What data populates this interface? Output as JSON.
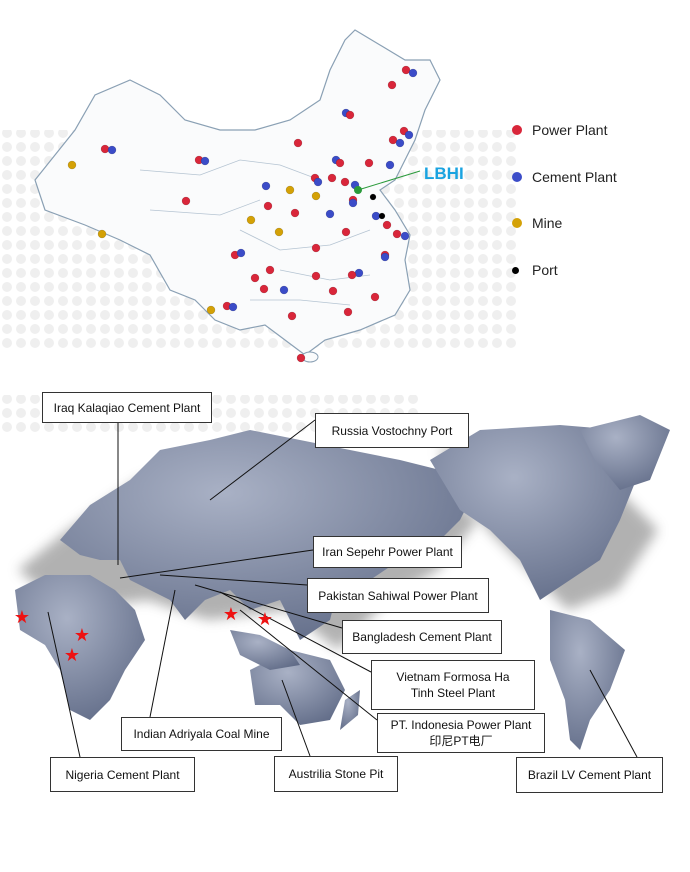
{
  "legend": {
    "items": [
      {
        "label": "Power Plant",
        "color": "#d9263a"
      },
      {
        "label": "Cement Plant",
        "color": "#3b4cc8"
      },
      {
        "label": "Mine",
        "color": "#d4a106"
      },
      {
        "label": "Port",
        "color": "#000000"
      }
    ]
  },
  "china_map": {
    "highlight_label": "LBHI",
    "highlight_color": "#1aa3e0",
    "line_color": "#2a9a3a"
  },
  "world_map": {
    "marker_icon": "red-star",
    "marker_color": "#ee1111",
    "projects": [
      {
        "label": "Iraq Kalaqiao Cement Plant"
      },
      {
        "label": "Russia Vostochny Port"
      },
      {
        "label": "Iran Sepehr Power Plant"
      },
      {
        "label": "Pakistan Sahiwal Power Plant"
      },
      {
        "label": "Bangladesh Cement Plant"
      },
      {
        "label": "Vietnam Formosa Ha Tinh Steel Plant"
      },
      {
        "label": "PT. Indonesia Power Plant",
        "sublabel": "印尼PT电厂"
      },
      {
        "label": "Indian Adriyala Coal Mine"
      },
      {
        "label": "Nigeria Cement Plant"
      },
      {
        "label": "Austrilia Stone Pit"
      },
      {
        "label": "Brazil LV Cement Plant"
      }
    ]
  }
}
